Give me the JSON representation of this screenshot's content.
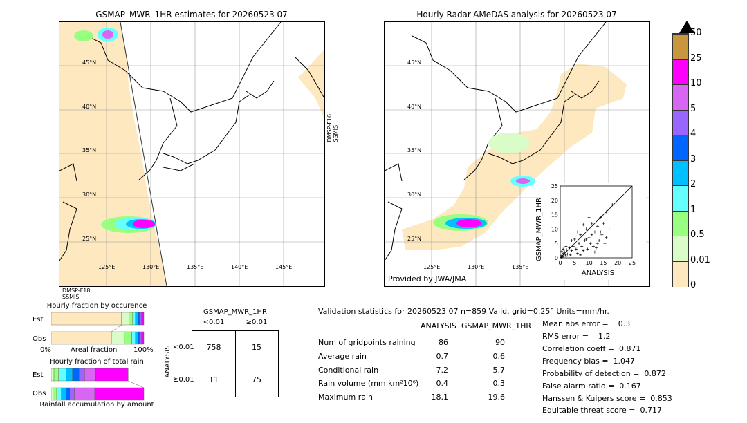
{
  "left_map": {
    "title": "GSMAP_MWR_1HR estimates for 20260523 07",
    "lat_labels": [
      "45°N",
      "40°N",
      "35°N",
      "30°N",
      "25°N"
    ],
    "lon_labels": [
      "125°E",
      "130°E",
      "135°E",
      "140°E",
      "145°E"
    ],
    "swath_right": "DMSP-F16\nSSMIS",
    "swath_bottom": "DMSP-F18\nSSMIS"
  },
  "right_map": {
    "title": "Hourly Radar-AMeDAS analysis for 20260523 07",
    "lat_labels": [
      "45°N",
      "40°N",
      "35°N",
      "30°N",
      "25°N"
    ],
    "lon_labels": [
      "125°E",
      "130°E",
      "135°E"
    ],
    "credit": "Provided by JWA/JMA"
  },
  "colorbar": {
    "ticks": [
      "50",
      "25",
      "10",
      "5",
      "4",
      "3",
      "2",
      "1",
      "0.5",
      "0.01",
      "0"
    ],
    "colors": [
      "#c8963c",
      "#ff00ff",
      "#d966f2",
      "#9966ff",
      "#0066ff",
      "#00bfff",
      "#66ffff",
      "#99ff80",
      "#d9fcc9",
      "#fde8bf"
    ]
  },
  "scatter": {
    "xlabel": "ANALYSIS",
    "ylabel": "GSMAP_MWR_1HR",
    "ticks": [
      "0",
      "5",
      "10",
      "15",
      "20",
      "25"
    ]
  },
  "chart_data": [
    {
      "type": "scatter",
      "xlabel": "ANALYSIS",
      "ylabel": "GSMAP_MWR_1HR",
      "xlim": [
        0,
        25
      ],
      "ylim": [
        0,
        25
      ],
      "points": [
        [
          0.3,
          0.2
        ],
        [
          0.5,
          0.8
        ],
        [
          0.8,
          0.4
        ],
        [
          1,
          1.5
        ],
        [
          1.2,
          0.6
        ],
        [
          1.5,
          2
        ],
        [
          1.8,
          1
        ],
        [
          2,
          0.5
        ],
        [
          2.2,
          2.8
        ],
        [
          2.5,
          1.3
        ],
        [
          3,
          2
        ],
        [
          3.2,
          3.5
        ],
        [
          3.5,
          1
        ],
        [
          4,
          2.5
        ],
        [
          4.5,
          4
        ],
        [
          5,
          6.5
        ],
        [
          5.5,
          3
        ],
        [
          6,
          1.5
        ],
        [
          6.5,
          5
        ],
        [
          7,
          8
        ],
        [
          7.5,
          4
        ],
        [
          8,
          2.5
        ],
        [
          8.5,
          6
        ],
        [
          9,
          10
        ],
        [
          9.5,
          3
        ],
        [
          10,
          7
        ],
        [
          10.5,
          5
        ],
        [
          11,
          12
        ],
        [
          11.5,
          4
        ],
        [
          12,
          9
        ],
        [
          12.5,
          3.5
        ],
        [
          13,
          11
        ],
        [
          13.5,
          6
        ],
        [
          14,
          14
        ],
        [
          14.5,
          8
        ],
        [
          15,
          12
        ],
        [
          15.5,
          5
        ],
        [
          16,
          16
        ],
        [
          17,
          10
        ],
        [
          18.1,
          18.5
        ],
        [
          12,
          2
        ],
        [
          10,
          14
        ],
        [
          8,
          11.5
        ],
        [
          6,
          9
        ],
        [
          4,
          6
        ],
        [
          2,
          4
        ],
        [
          1,
          3
        ],
        [
          0.5,
          2.2
        ],
        [
          7,
          1
        ],
        [
          9,
          6.5
        ],
        [
          11,
          8
        ],
        [
          13,
          5
        ],
        [
          14,
          9
        ],
        [
          16,
          7
        ]
      ]
    },
    {
      "type": "bar",
      "title": "Hourly fraction by occurence",
      "categories": [
        "Est",
        "Obs"
      ],
      "xlabel_left": "0%",
      "xlabel_mid": "Areal fraction",
      "xlabel_right": "100%"
    },
    {
      "type": "bar",
      "title": "Hourly fraction of total rain",
      "categories": [
        "Est",
        "Obs"
      ],
      "xlabel": "Rainfall accumulation by amount"
    }
  ],
  "occurrence": {
    "title": "Hourly fraction by occurence",
    "rows": [
      "Est",
      "Obs"
    ],
    "xleft": "0%",
    "xmid": "Areal fraction",
    "xright": "100%"
  },
  "totalrain": {
    "title": "Hourly fraction of total rain",
    "rows": [
      "Est",
      "Obs"
    ],
    "xlabel": "Rainfall accumulation by amount"
  },
  "contingency": {
    "title": "GSMAP_MWR_1HR",
    "col_lt": "<0.01",
    "col_ge": "≥0.01",
    "row_label": "ANALYSIS",
    "row_lt": "<0.01",
    "row_ge": "≥0.01",
    "a": "758",
    "b": "15",
    "c": "11",
    "d": "75"
  },
  "validation": {
    "header": "Validation statistics for 20260523 07  n=859 Valid. grid=0.25° Units=mm/hr.",
    "col1": "ANALYSIS",
    "col2": "GSMAP_MWR_1HR",
    "rows": [
      {
        "label": "Num of gridpoints raining",
        "a": "86",
        "b": "90"
      },
      {
        "label": "Average rain",
        "a": "0.7",
        "b": "0.6"
      },
      {
        "label": "Conditional rain",
        "a": "7.2",
        "b": "5.7"
      },
      {
        "label": "Rain volume (mm km²10⁶)",
        "a": "0.4",
        "b": "0.3"
      },
      {
        "label": "Maximum rain",
        "a": "18.1",
        "b": "19.6"
      }
    ],
    "scores": [
      "Mean abs error =    0.3",
      "RMS error =    1.2",
      "Correlation coeff =  0.871",
      "Frequency bias =  1.047",
      "Probability of detection =  0.872",
      "False alarm ratio =  0.167",
      "Hanssen & Kuipers score =  0.853",
      "Equitable threat score =  0.717"
    ]
  }
}
